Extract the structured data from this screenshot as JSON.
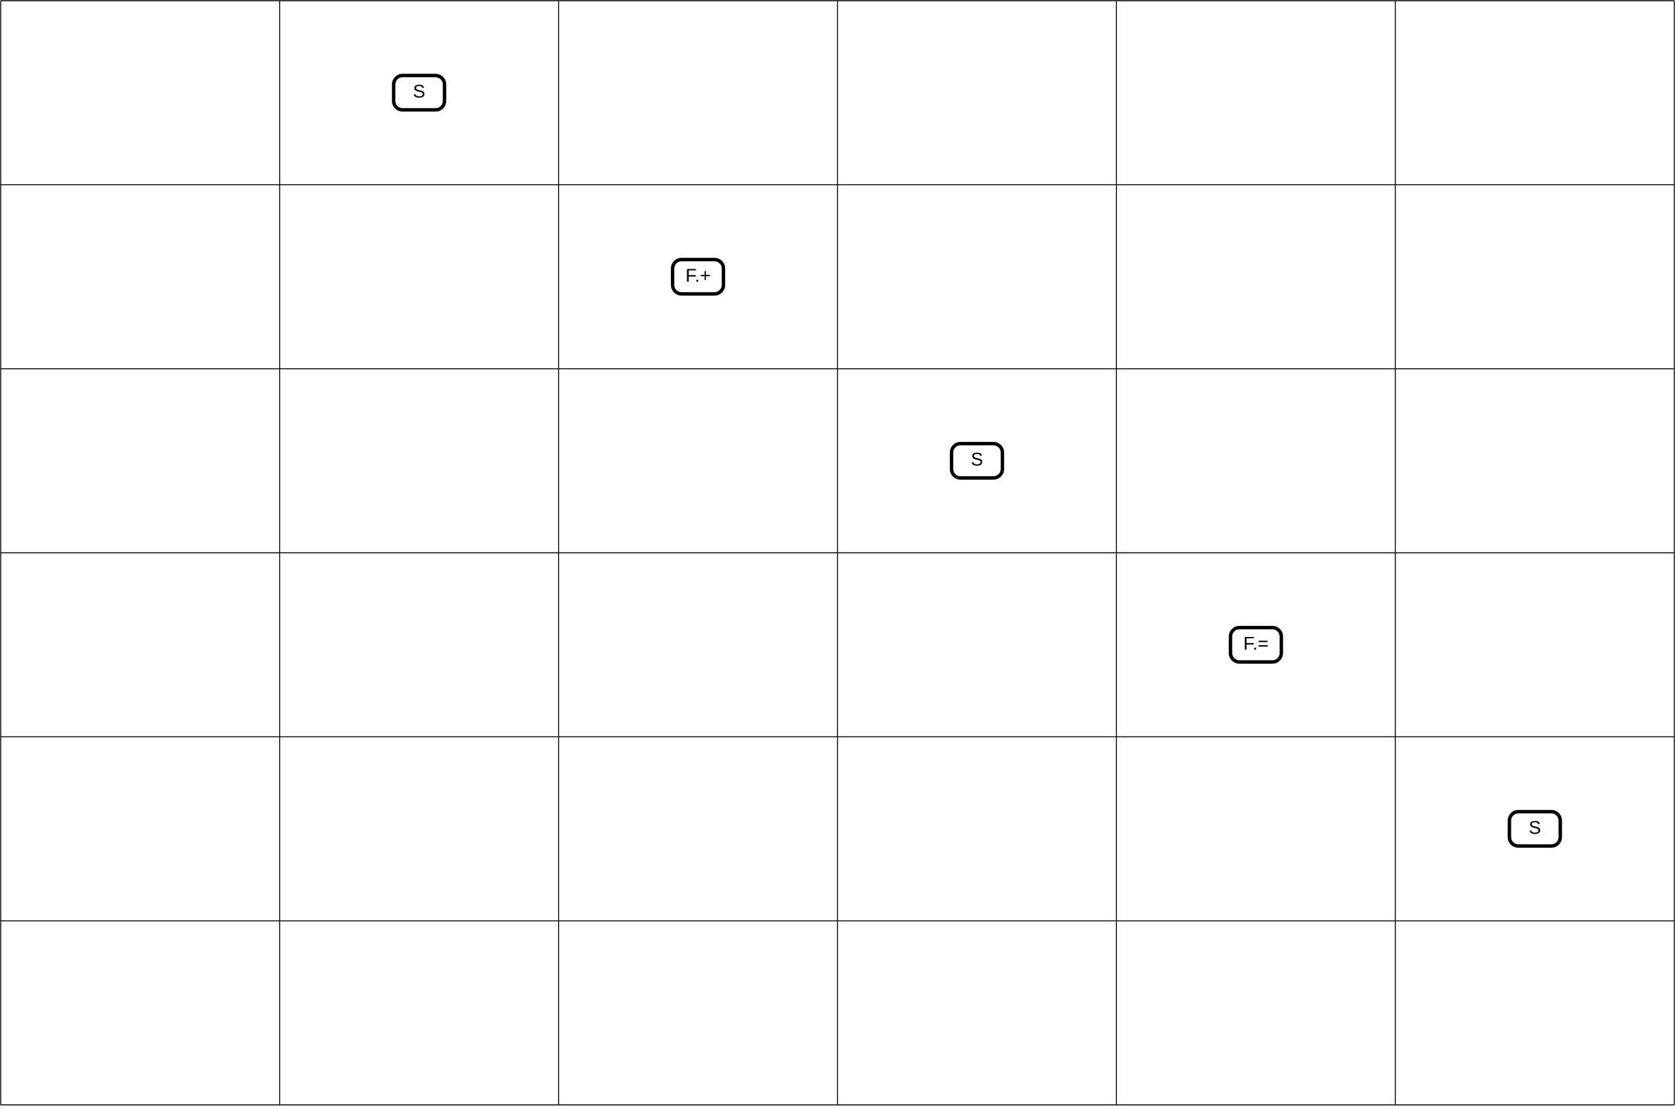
{
  "grid": {
    "rows": 6,
    "columns": 6,
    "line_color": "#000000"
  },
  "nodes": [
    {
      "label": "S",
      "row": 1,
      "column": 2
    },
    {
      "label": "F.+",
      "row": 2,
      "column": 3
    },
    {
      "label": "S",
      "row": 3,
      "column": 4
    },
    {
      "label": "F.=",
      "row": 4,
      "column": 5
    },
    {
      "label": "S",
      "row": 5,
      "column": 6
    }
  ]
}
